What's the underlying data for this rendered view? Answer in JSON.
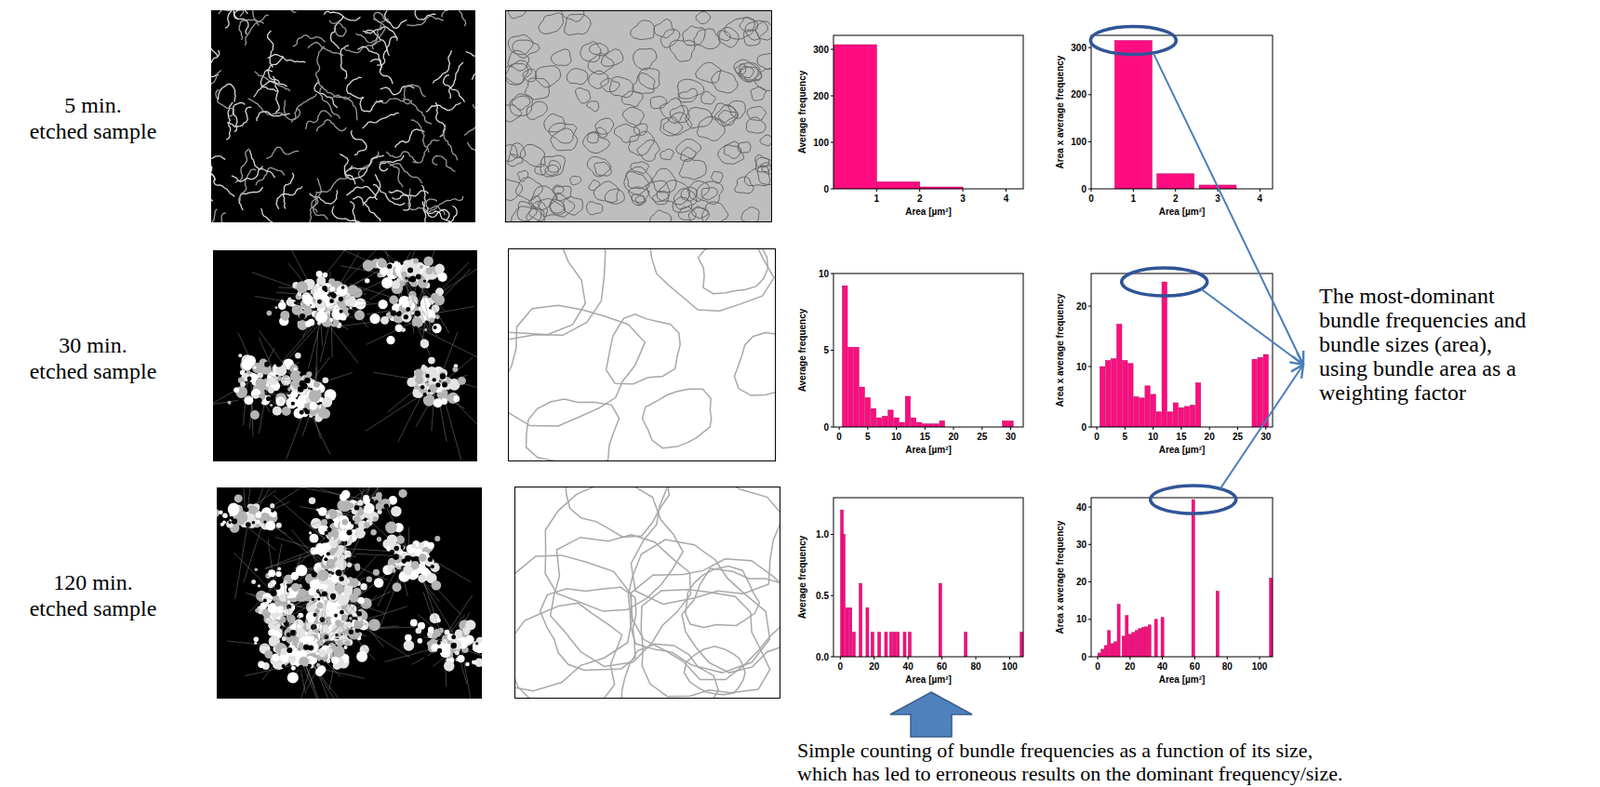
{
  "rows": [
    {
      "label_lines": [
        "5 min.",
        "etched sample"
      ]
    },
    {
      "label_lines": [
        "30 min.",
        "etched sample"
      ]
    },
    {
      "label_lines": [
        "120 min.",
        "etched sample"
      ]
    }
  ],
  "annotations": {
    "weighting_note": {
      "lines": [
        "The most-dominant",
        "bundle frequencies and",
        "bundle sizes (area),",
        "using bundle area as a",
        "weighting factor"
      ]
    },
    "counting_note": {
      "lines": [
        "Simple counting of bundle frequencies as a function of its size,",
        "which has led to erroneous results on the dominant frequency/size."
      ]
    }
  },
  "chart_data": [
    {
      "type": "histogram",
      "xlabel": "Area [µm²]",
      "ylabel": "Average frequency",
      "bins": [
        0,
        1,
        2,
        3
      ],
      "values": [
        310,
        15,
        4
      ],
      "xlim": [
        0,
        4.4
      ],
      "ylim": [
        0,
        330
      ],
      "xticks": [
        1,
        2,
        3,
        4
      ],
      "yticks": [
        0,
        100,
        200,
        300
      ],
      "color": "#ff0d80"
    },
    {
      "type": "bar",
      "xlabel": "Area [µm²]",
      "ylabel": "Area x average frequency",
      "x": [
        1,
        2,
        3
      ],
      "values": [
        315,
        32,
        8
      ],
      "xlim": [
        0,
        4.3
      ],
      "ylim": [
        0,
        326
      ],
      "xticks": [
        0,
        1,
        2,
        3,
        4
      ],
      "yticks": [
        0,
        100,
        200,
        300
      ],
      "color": "#ff0d80"
    },
    {
      "type": "bar",
      "xlabel": "Area [µm²]",
      "ylabel": "Average frequency",
      "x": [
        1,
        2,
        3,
        4,
        5,
        6,
        7,
        8,
        9,
        10,
        11,
        12,
        13,
        14,
        15,
        16,
        17,
        18,
        29,
        30
      ],
      "values": [
        9.2,
        5.2,
        5.2,
        2.6,
        1.9,
        1.2,
        0.6,
        0.7,
        1.1,
        0.6,
        0.3,
        2.0,
        0.6,
        0.3,
        0.2,
        0.2,
        0.2,
        0.4,
        0.4,
        0.4
      ],
      "xlim": [
        -1,
        32.2
      ],
      "ylim": [
        0,
        10
      ],
      "xticks": [
        0,
        5,
        10,
        15,
        20,
        25,
        30
      ],
      "yticks": [
        0,
        5,
        10
      ],
      "color": "#ff0d80"
    },
    {
      "type": "bar",
      "xlabel": "Area [µm²]",
      "ylabel": "Area x average frequency",
      "x": [
        1,
        2,
        3,
        4,
        5,
        6,
        7,
        8,
        9,
        10,
        11,
        12,
        13,
        14,
        15,
        16,
        17,
        18,
        28,
        29,
        30
      ],
      "values": [
        10,
        11,
        11.3,
        17,
        11,
        10.5,
        5,
        4.8,
        6.8,
        5.4,
        2.5,
        24,
        2.5,
        4,
        3.2,
        3.4,
        3.6,
        7.3,
        11.2,
        11.5,
        12
      ],
      "xlim": [
        -1,
        31.2
      ],
      "ylim": [
        0,
        25.4
      ],
      "xticks": [
        0,
        5,
        10,
        15,
        20,
        25,
        30
      ],
      "yticks": [
        0,
        10,
        20
      ],
      "color": "#ff0d80"
    },
    {
      "type": "bar",
      "xlabel": "Area [µm²]",
      "ylabel": "Average frequency",
      "x": [
        1,
        2,
        4,
        6,
        8,
        12,
        16,
        19,
        23,
        27,
        30,
        32,
        34,
        38,
        41,
        59,
        74,
        107
      ],
      "values": [
        1.2,
        1.0,
        0.4,
        0.4,
        0.2,
        0.6,
        0.4,
        0.2,
        0.2,
        0.2,
        0.2,
        0.2,
        0.2,
        0.2,
        0.2,
        0.6,
        0.2,
        0.2
      ],
      "xlim": [
        -4,
        108
      ],
      "ylim": [
        0,
        1.3
      ],
      "xticks": [
        0,
        20,
        40,
        60,
        80,
        100
      ],
      "yticks": [
        {
          "value": 0,
          "label": "0.0"
        },
        0.5,
        {
          "value": 1,
          "label": "1.0"
        }
      ],
      "color": "#ff0d80"
    },
    {
      "type": "bar",
      "xlabel": "Area [µm²]",
      "ylabel": "Area x average frequency",
      "x": [
        1,
        3,
        5,
        7,
        9,
        11,
        13,
        16,
        18,
        20,
        22,
        24,
        26,
        28,
        30,
        32,
        36,
        40,
        59,
        74,
        107
      ],
      "values": [
        1,
        2,
        3,
        7,
        3.5,
        4,
        14,
        5.5,
        11,
        6,
        6.5,
        7,
        7.5,
        7.8,
        8,
        8.5,
        10,
        10.5,
        42,
        17.5,
        21
      ],
      "xlim": [
        -4,
        108
      ],
      "ylim": [
        0,
        42.5
      ],
      "xticks": [
        0,
        20,
        40,
        60,
        80,
        100
      ],
      "yticks": [
        0,
        10,
        20,
        30,
        40
      ],
      "color": "#ff0d80"
    }
  ]
}
